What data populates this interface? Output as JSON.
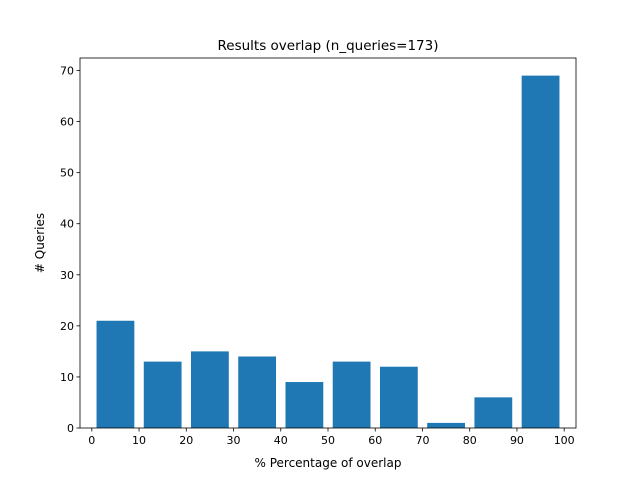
{
  "chart_data": {
    "type": "bar",
    "title": "Results overlap (n_queries=173)",
    "xlabel": "% Percentage of overlap",
    "ylabel": "# Queries",
    "bins": [
      [
        0,
        10
      ],
      [
        10,
        20
      ],
      [
        20,
        30
      ],
      [
        30,
        40
      ],
      [
        40,
        50
      ],
      [
        50,
        60
      ],
      [
        60,
        70
      ],
      [
        70,
        80
      ],
      [
        80,
        90
      ],
      [
        90,
        100
      ]
    ],
    "values": [
      21,
      13,
      15,
      14,
      9,
      13,
      12,
      1,
      6,
      69
    ],
    "xlim": [
      -2.5,
      102.5
    ],
    "ylim": [
      0,
      72.45
    ],
    "xticks": [
      0,
      10,
      20,
      30,
      40,
      50,
      60,
      70,
      80,
      90,
      100
    ],
    "yticks": [
      0,
      10,
      20,
      30,
      40,
      50,
      60,
      70
    ],
    "bar_color": "#1f77b4",
    "grid": false,
    "legend": "none"
  }
}
